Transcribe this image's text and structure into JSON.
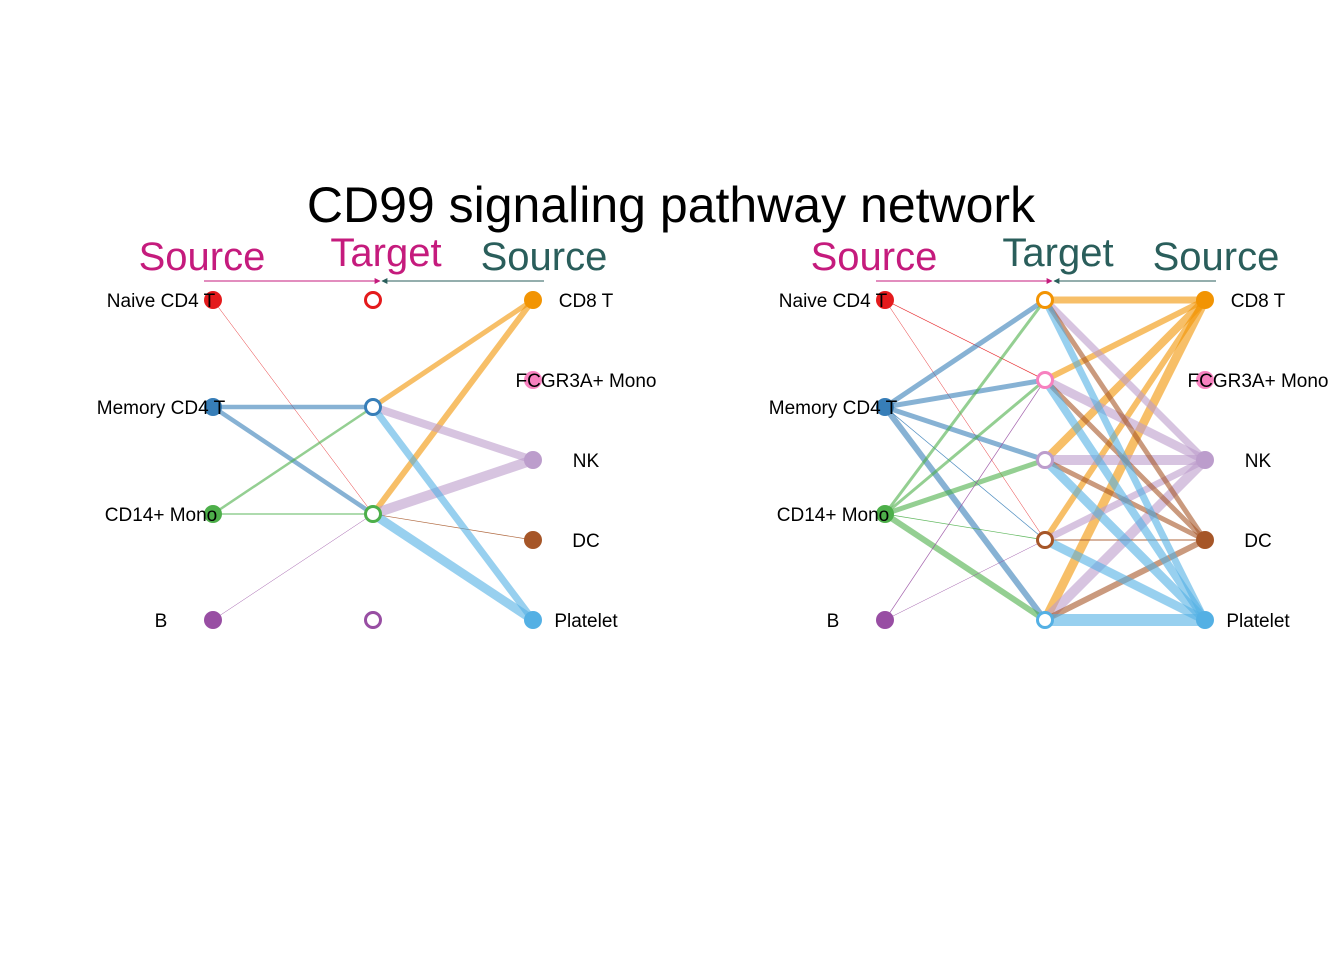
{
  "title": "CD99 signaling pathway network",
  "headers": {
    "source_left": "Source",
    "target": "Target",
    "source_right": "Source"
  },
  "colors": {
    "header_source_left": "#c51b7d",
    "header_target_left_panel": "#c51b7d",
    "header_target_right_panel": "#2a5e5b",
    "header_source_right": "#2a5e5b",
    "arrow_left": "#c51b7d",
    "arrow_right": "#2a5e5b"
  },
  "cell_groups": [
    {
      "id": "naive_cd4_t",
      "label": "Naive CD4 T",
      "color": "#e41a1c"
    },
    {
      "id": "memory_cd4_t",
      "label": "Memory CD4 T",
      "color": "#377eb8"
    },
    {
      "id": "cd14_mono",
      "label": "CD14+ Mono",
      "color": "#4daf4a"
    },
    {
      "id": "b",
      "label": "B",
      "color": "#984ea3"
    },
    {
      "id": "cd8_t",
      "label": "CD8 T",
      "color": "#f29403"
    },
    {
      "id": "fcgr3a_mono",
      "label": "FCGR3A+ Mono",
      "color": "#f781bf"
    },
    {
      "id": "nk",
      "label": "NK",
      "color": "#bc9dcc"
    },
    {
      "id": "dc",
      "label": "DC",
      "color": "#a65628"
    },
    {
      "id": "platelet",
      "label": "Platelet",
      "color": "#54b0e4"
    }
  ],
  "panels": [
    {
      "name": "left",
      "left_sources": [
        "naive_cd4_t",
        "memory_cd4_t",
        "cd14_mono",
        "b"
      ],
      "targets": [
        "naive_cd4_t",
        "memory_cd4_t",
        "cd14_mono",
        "b"
      ],
      "right_sources": [
        "cd8_t",
        "fcgr3a_mono",
        "nk",
        "dc",
        "platelet"
      ],
      "edges": [
        {
          "from": "naive_cd4_t",
          "to": "cd14_mono",
          "w": 0.5
        },
        {
          "from": "memory_cd4_t",
          "to": "memory_cd4_t",
          "w": 4.5
        },
        {
          "from": "memory_cd4_t",
          "to": "cd14_mono",
          "w": 4.5
        },
        {
          "from": "cd14_mono",
          "to": "memory_cd4_t",
          "w": 2.5
        },
        {
          "from": "cd14_mono",
          "to": "cd14_mono",
          "w": 1
        },
        {
          "from": "b",
          "to": "cd14_mono",
          "w": 0.5
        },
        {
          "from": "cd8_t",
          "to": "memory_cd4_t",
          "w": 5
        },
        {
          "from": "cd8_t",
          "to": "cd14_mono",
          "w": 6
        },
        {
          "from": "nk",
          "to": "memory_cd4_t",
          "w": 8
        },
        {
          "from": "nk",
          "to": "cd14_mono",
          "w": 10
        },
        {
          "from": "dc",
          "to": "cd14_mono",
          "w": 0.7
        },
        {
          "from": "platelet",
          "to": "memory_cd4_t",
          "w": 7
        },
        {
          "from": "platelet",
          "to": "cd14_mono",
          "w": 9
        }
      ]
    },
    {
      "name": "right",
      "left_sources": [
        "naive_cd4_t",
        "memory_cd4_t",
        "cd14_mono",
        "b"
      ],
      "targets": [
        "cd8_t",
        "fcgr3a_mono",
        "nk",
        "dc",
        "platelet"
      ],
      "right_sources": [
        "cd8_t",
        "fcgr3a_mono",
        "nk",
        "dc",
        "platelet"
      ],
      "edges": [
        {
          "from": "naive_cd4_t",
          "to": "fcgr3a_mono",
          "w": 0.7
        },
        {
          "from": "naive_cd4_t",
          "to": "dc",
          "w": 0.5
        },
        {
          "from": "memory_cd4_t",
          "to": "cd8_t",
          "w": 5
        },
        {
          "from": "memory_cd4_t",
          "to": "fcgr3a_mono",
          "w": 5
        },
        {
          "from": "memory_cd4_t",
          "to": "nk",
          "w": 5
        },
        {
          "from": "memory_cd4_t",
          "to": "dc",
          "w": 0.7
        },
        {
          "from": "memory_cd4_t",
          "to": "platelet",
          "w": 6
        },
        {
          "from": "cd14_mono",
          "to": "cd8_t",
          "w": 3
        },
        {
          "from": "cd14_mono",
          "to": "fcgr3a_mono",
          "w": 3
        },
        {
          "from": "cd14_mono",
          "to": "nk",
          "w": 5
        },
        {
          "from": "cd14_mono",
          "to": "dc",
          "w": 0.7
        },
        {
          "from": "cd14_mono",
          "to": "platelet",
          "w": 6
        },
        {
          "from": "b",
          "to": "fcgr3a_mono",
          "w": 0.7
        },
        {
          "from": "b",
          "to": "dc",
          "w": 0.5
        },
        {
          "from": "cd8_t",
          "to": "cd8_t",
          "w": 7
        },
        {
          "from": "cd8_t",
          "to": "fcgr3a_mono",
          "w": 6
        },
        {
          "from": "cd8_t",
          "to": "nk",
          "w": 8
        },
        {
          "from": "cd8_t",
          "to": "dc",
          "w": 6
        },
        {
          "from": "cd8_t",
          "to": "platelet",
          "w": 9
        },
        {
          "from": "nk",
          "to": "cd8_t",
          "w": 7
        },
        {
          "from": "nk",
          "to": "fcgr3a_mono",
          "w": 9
        },
        {
          "from": "nk",
          "to": "nk",
          "w": 10
        },
        {
          "from": "nk",
          "to": "dc",
          "w": 7
        },
        {
          "from": "nk",
          "to": "platelet",
          "w": 10
        },
        {
          "from": "dc",
          "to": "cd8_t",
          "w": 5
        },
        {
          "from": "dc",
          "to": "fcgr3a_mono",
          "w": 5
        },
        {
          "from": "dc",
          "to": "nk",
          "w": 5
        },
        {
          "from": "dc",
          "to": "dc",
          "w": 1
        },
        {
          "from": "dc",
          "to": "platelet",
          "w": 6
        },
        {
          "from": "platelet",
          "to": "cd8_t",
          "w": 7
        },
        {
          "from": "platelet",
          "to": "fcgr3a_mono",
          "w": 8
        },
        {
          "from": "platelet",
          "to": "nk",
          "w": 9
        },
        {
          "from": "platelet",
          "to": "dc",
          "w": 9
        },
        {
          "from": "platelet",
          "to": "platelet",
          "w": 12
        }
      ]
    }
  ]
}
